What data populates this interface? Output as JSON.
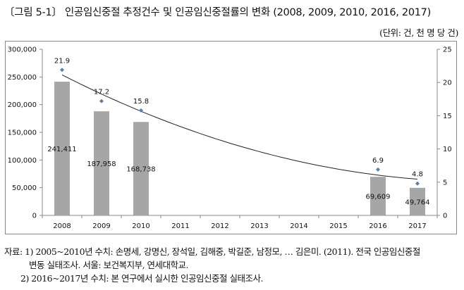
{
  "title": "〔그림 5-1〕 인공임신중절 추정건수 및 인공임신중절률의 변화 (2008, 2009, 2010, 2016, 2017)",
  "unit": "(단위: 건, 천 명 당 건)",
  "chart_data": {
    "type": "bar",
    "categories": [
      "2008",
      "2009",
      "2010",
      "2011",
      "2012",
      "2013",
      "2014",
      "2015",
      "2016",
      "2017"
    ],
    "series": [
      {
        "type": "bar",
        "axis": "left",
        "values": [
          241411,
          187958,
          168738,
          null,
          null,
          null,
          null,
          null,
          69609,
          49764
        ],
        "labels": [
          "241,411",
          "187,958",
          "168,738",
          "",
          "",
          "",
          "",
          "",
          "69,609",
          "49,764"
        ],
        "color": "#a6a6a6"
      },
      {
        "type": "scatter",
        "axis": "right",
        "values": [
          21.9,
          17.2,
          15.8,
          null,
          null,
          null,
          null,
          null,
          6.9,
          4.8
        ],
        "labels": [
          "21.9",
          "17.2",
          "15.8",
          "",
          "",
          "",
          "",
          "",
          "6.9",
          "4.8"
        ],
        "color": "#4f81bd",
        "trendline": "polynomial-2"
      }
    ],
    "y_left": {
      "min": 0,
      "max": 300000,
      "ticks": [
        "0",
        "50,000",
        "100,000",
        "150,000",
        "200,000",
        "250,000",
        "300,000"
      ]
    },
    "y_right": {
      "min": 0,
      "max": 25,
      "ticks": [
        "0",
        "5",
        "10",
        "15",
        "20",
        "25"
      ]
    },
    "grid": false,
    "legend": "none"
  },
  "source": {
    "line1": "자료: 1) 2005~2010년 수치: 손명세, 강명신, 장석일, 김해중, 박길준, 남정모, … 김은미. (2011). 전국 인공임신중절",
    "line2": "변동 실태조사. 서울: 보건복지부, 연세대학교.",
    "line3": "2) 2016~2017년 수치: 본 연구에서 실시한 인공임신중절 실태조사."
  }
}
